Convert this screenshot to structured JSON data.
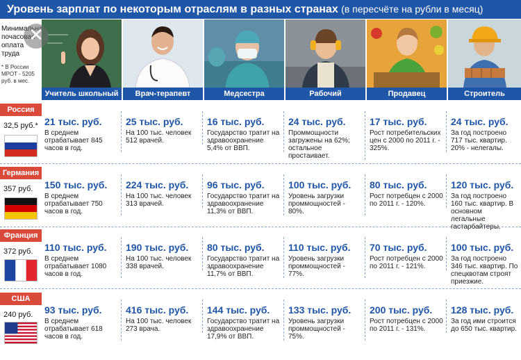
{
  "title": {
    "main": "Уровень зарплат по некоторым отраслям в разных странах",
    "sub": "(в пересчёте на рубли в месяц)"
  },
  "close_glyph": "✕",
  "mrot_header": {
    "label": "Минимальная почасовая оплата труда",
    "note": "* В России МРОТ - 5205 руб. в мес."
  },
  "jobs": [
    "Учитель школьный",
    "Врач-терапевт",
    "Медсестра",
    "Рабочий",
    "Продавец",
    "Строитель"
  ],
  "colors": {
    "blue": "#1f56a8",
    "red": "#d94a3a",
    "accent_yellow": "#e8b520"
  },
  "rows": [
    {
      "country": "Россия",
      "mrot": "32,5 руб.*",
      "flag": "russia",
      "cells": [
        {
          "salary": "21 тыс. руб.",
          "desc": "В среднем отрабатывает 845 часов в год."
        },
        {
          "salary": "25 тыс. руб.",
          "desc": "На 100 тыс. человек 512 врачей."
        },
        {
          "salary": "16 тыс. руб.",
          "desc": "Государство тратит на здравоохранение 5,4% от ВВП."
        },
        {
          "salary": "24 тыс. руб.",
          "desc": "Проммощности загружены на 62%; остальное простаивает."
        },
        {
          "salary": "17 тыс. руб.",
          "desc": "Рост потребительских цен с 2000 по 2011 г. - 325%."
        },
        {
          "salary": "24 тыс. руб.",
          "desc": "За год построено 717 тыс. квартир. 20% - нелегалы."
        }
      ]
    },
    {
      "country": "Германия",
      "mrot": "357 руб.",
      "flag": "germany",
      "cells": [
        {
          "salary": "150 тыс. руб.",
          "desc": "В среднем отрабатывает 750 часов в год."
        },
        {
          "salary": "224 тыс. руб.",
          "desc": "На 100 тыс. человек 313 врачей."
        },
        {
          "salary": "96 тыс. руб.",
          "desc": "Государство тратит на здравоохранение 11,3% от ВВП."
        },
        {
          "salary": "100 тыс. руб.",
          "desc": "Уровень загрузки проммощностей - 80%."
        },
        {
          "salary": "80 тыс. руб.",
          "desc": "Рост потребцен с 2000 по 2011 г. - 120%."
        },
        {
          "salary": "120 тыс. руб.",
          "desc": "За год построено 160 тыс. квартир. В основном легальные гастарбайтеры."
        }
      ]
    },
    {
      "country": "Франция",
      "mrot": "372 руб.",
      "flag": "france",
      "cells": [
        {
          "salary": "110 тыс. руб.",
          "desc": "В среднем отрабатывает 1080 часов в год."
        },
        {
          "salary": "190 тыс. руб.",
          "desc": "На 100 тыс. человек 338 врачей."
        },
        {
          "salary": "80 тыс. руб.",
          "desc": "Государство тратит на здравоохранение 11,7% от ВВП."
        },
        {
          "salary": "110 тыс. руб.",
          "desc": "Уровень загрузки проммощностей - 77%."
        },
        {
          "salary": "70 тыс. руб.",
          "desc": "Рост потребцен с 2000 по 2011 г. - 121%."
        },
        {
          "salary": "100 тыс. руб.",
          "desc": "За год построено 346 тыс. квартир. По спецквотам строят приезжие."
        }
      ]
    },
    {
      "country": "США",
      "mrot": "240 руб.",
      "flag": "usa",
      "cells": [
        {
          "salary": "93 тыс. руб.",
          "desc": "В среднем отрабатывает 618 часов в год."
        },
        {
          "salary": "416 тыс. руб.",
          "desc": "На 100 тыс. человек 273 врача."
        },
        {
          "salary": "144 тыс. руб.",
          "desc": "Государство тратит на здравоохранение 17,9% от ВВП."
        },
        {
          "salary": "133 тыс. руб.",
          "desc": "Уровень загрузки проммощностей - 75%."
        },
        {
          "salary": "200 тыс. руб.",
          "desc": "Рост потребцен с 2000 по 2011 г. - 131%."
        },
        {
          "salary": "128 тыс. руб.",
          "desc": "За год ими строится до 650 тыс. квартир."
        }
      ]
    }
  ]
}
